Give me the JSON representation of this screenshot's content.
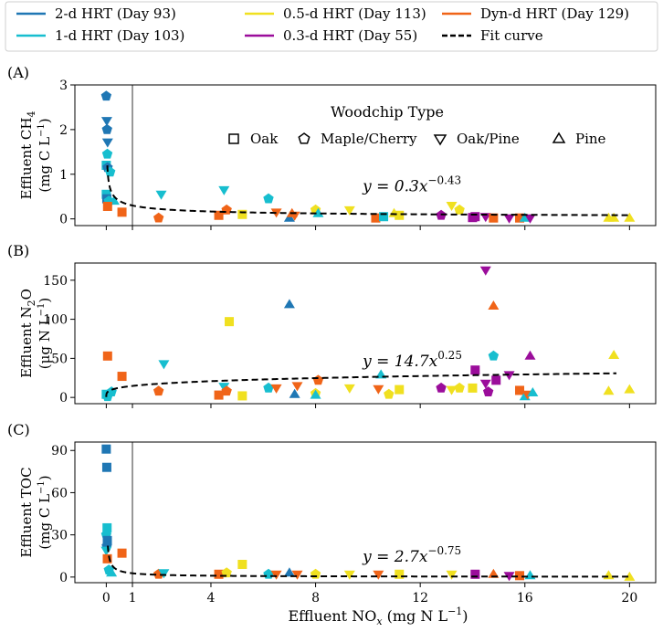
{
  "colors": {
    "hrt2": "#1f77b4",
    "hrt1": "#17becf",
    "hrt05": "#f0e020",
    "hrt03": "#9b0d9b",
    "dyn": "#f06418",
    "fit": "#000000"
  },
  "legend": {
    "items": [
      {
        "label": "2-d HRT (Day 93)",
        "color": "#1f77b4",
        "style": "solid"
      },
      {
        "label": "1-d HRT (Day 103)",
        "color": "#17becf",
        "style": "solid"
      },
      {
        "label": "0.5-d HRT (Day 113)",
        "color": "#f0e020",
        "style": "solid"
      },
      {
        "label": "0.3-d HRT (Day 55)",
        "color": "#9b0d9b",
        "style": "solid"
      },
      {
        "label": "Dyn-d HRT (Day 129)",
        "color": "#f06418",
        "style": "solid"
      },
      {
        "label": "Fit curve",
        "color": "#000000",
        "style": "dashed"
      }
    ]
  },
  "woodchip_legend": {
    "title": "Woodchip Type",
    "items": [
      {
        "label": "Oak",
        "marker": "square"
      },
      {
        "label": "Maple/Cherry",
        "marker": "pentagon"
      },
      {
        "label": "Oak/Pine",
        "marker": "triangle-down"
      },
      {
        "label": "Pine",
        "marker": "triangle-up"
      }
    ]
  },
  "chart_data": [
    {
      "panel_label": "(A)",
      "type": "scatter",
      "ylabel_line1": "Effluent CH",
      "ylabel_sub": "4",
      "ylabel_line2": "(mg C L",
      "ylabel_sup": "−1",
      "ylabel_close": ")",
      "ylim": [
        -0.15,
        3.0
      ],
      "yticks": [
        "0",
        "1",
        "2",
        "3"
      ],
      "ytick_values": [
        0,
        1,
        2,
        3
      ],
      "fit": {
        "a": 0.3,
        "b": -0.43,
        "xmin": 0.04,
        "xmax": 20,
        "label_main": "y = 0.3x",
        "label_exp": "−0.43",
        "label_x": 9.8,
        "label_y": 0.62
      },
      "reference_line_x": 1,
      "points": [
        {
          "x": 0.0,
          "y": 2.75,
          "g": "hrt2",
          "m": "pentagon"
        },
        {
          "x": 0.02,
          "y": 2.2,
          "g": "hrt2",
          "m": "triangle-down"
        },
        {
          "x": 0.03,
          "y": 2.0,
          "g": "hrt2",
          "m": "pentagon"
        },
        {
          "x": 0.05,
          "y": 1.72,
          "g": "hrt2",
          "m": "triangle-down"
        },
        {
          "x": 0.04,
          "y": 1.45,
          "g": "hrt1",
          "m": "pentagon"
        },
        {
          "x": 0.0,
          "y": 1.2,
          "g": "hrt1",
          "m": "square"
        },
        {
          "x": 0.05,
          "y": 1.15,
          "g": "hrt2",
          "m": "pentagon"
        },
        {
          "x": 0.15,
          "y": 1.05,
          "g": "hrt1",
          "m": "pentagon"
        },
        {
          "x": 0.0,
          "y": 0.55,
          "g": "hrt1",
          "m": "square"
        },
        {
          "x": 0.02,
          "y": 0.45,
          "g": "hrt2",
          "m": "square"
        },
        {
          "x": 0.1,
          "y": 0.4,
          "g": "hrt1",
          "m": "pentagon"
        },
        {
          "x": 0.3,
          "y": 0.4,
          "g": "hrt1",
          "m": "triangle-up"
        },
        {
          "x": 0.05,
          "y": 0.28,
          "g": "dyn",
          "m": "square"
        },
        {
          "x": 0.6,
          "y": 0.15,
          "g": "dyn",
          "m": "square"
        },
        {
          "x": 2.0,
          "y": 0.02,
          "g": "dyn",
          "m": "pentagon"
        },
        {
          "x": 2.1,
          "y": 0.55,
          "g": "hrt1",
          "m": "triangle-down"
        },
        {
          "x": 4.3,
          "y": 0.08,
          "g": "dyn",
          "m": "square"
        },
        {
          "x": 4.5,
          "y": 0.65,
          "g": "hrt1",
          "m": "triangle-down"
        },
        {
          "x": 4.6,
          "y": 0.2,
          "g": "dyn",
          "m": "pentagon"
        },
        {
          "x": 5.2,
          "y": 0.1,
          "g": "hrt05",
          "m": "square"
        },
        {
          "x": 6.2,
          "y": 0.45,
          "g": "hrt1",
          "m": "pentagon"
        },
        {
          "x": 6.5,
          "y": 0.15,
          "g": "dyn",
          "m": "triangle-down"
        },
        {
          "x": 7.0,
          "y": 0.02,
          "g": "hrt2",
          "m": "triangle-up"
        },
        {
          "x": 7.2,
          "y": 0.08,
          "g": "dyn",
          "m": "triangle-down"
        },
        {
          "x": 7.1,
          "y": 0.12,
          "g": "dyn",
          "m": "triangle-up"
        },
        {
          "x": 8.0,
          "y": 0.2,
          "g": "hrt05",
          "m": "pentagon"
        },
        {
          "x": 8.1,
          "y": 0.12,
          "g": "hrt1",
          "m": "triangle-up"
        },
        {
          "x": 9.3,
          "y": 0.2,
          "g": "hrt05",
          "m": "triangle-down"
        },
        {
          "x": 10.3,
          "y": 0.02,
          "g": "dyn",
          "m": "square"
        },
        {
          "x": 10.6,
          "y": 0.05,
          "g": "hrt1",
          "m": "square"
        },
        {
          "x": 11.0,
          "y": 0.12,
          "g": "hrt05",
          "m": "triangle-up"
        },
        {
          "x": 11.2,
          "y": 0.08,
          "g": "hrt05",
          "m": "square"
        },
        {
          "x": 12.8,
          "y": 0.08,
          "g": "hrt03",
          "m": "pentagon"
        },
        {
          "x": 13.2,
          "y": 0.3,
          "g": "hrt05",
          "m": "triangle-down"
        },
        {
          "x": 13.5,
          "y": 0.2,
          "g": "hrt05",
          "m": "pentagon"
        },
        {
          "x": 14.0,
          "y": 0.03,
          "g": "hrt03",
          "m": "square"
        },
        {
          "x": 14.1,
          "y": 0.05,
          "g": "hrt03",
          "m": "square"
        },
        {
          "x": 14.5,
          "y": 0.05,
          "g": "hrt03",
          "m": "triangle-down"
        },
        {
          "x": 14.8,
          "y": 0.02,
          "g": "dyn",
          "m": "square"
        },
        {
          "x": 15.4,
          "y": 0.02,
          "g": "hrt03",
          "m": "triangle-down"
        },
        {
          "x": 15.8,
          "y": 0.02,
          "g": "dyn",
          "m": "square"
        },
        {
          "x": 16.0,
          "y": 0.02,
          "g": "hrt1",
          "m": "triangle-up"
        },
        {
          "x": 16.2,
          "y": 0.02,
          "g": "hrt03",
          "m": "triangle-down"
        },
        {
          "x": 19.2,
          "y": 0.02,
          "g": "hrt05",
          "m": "triangle-up"
        },
        {
          "x": 19.4,
          "y": 0.02,
          "g": "hrt05",
          "m": "triangle-up"
        },
        {
          "x": 20.0,
          "y": 0.02,
          "g": "hrt05",
          "m": "triangle-up"
        }
      ]
    },
    {
      "panel_label": "(B)",
      "type": "scatter",
      "ylabel_line1": "Effluent N",
      "ylabel_sub": "2",
      "ylabel_tail": "O",
      "ylabel_line2": "(μg N L",
      "ylabel_sup": "−1",
      "ylabel_close": ")",
      "ylim": [
        -8,
        172
      ],
      "yticks": [
        "0",
        "50",
        "100",
        "150"
      ],
      "ytick_values": [
        0,
        50,
        100,
        150
      ],
      "fit": {
        "a": 14.7,
        "b": 0.25,
        "xmin": 0.0,
        "xmax": 19.5,
        "label_main": "y = 14.7x",
        "label_exp": "0.25",
        "label_x": 9.8,
        "label_y": 40
      },
      "reference_line_x": null,
      "points": [
        {
          "x": 0.05,
          "y": 53,
          "g": "dyn",
          "m": "square"
        },
        {
          "x": 0.0,
          "y": 4,
          "g": "hrt1",
          "m": "square"
        },
        {
          "x": 0.05,
          "y": 1,
          "g": "hrt1",
          "m": "pentagon"
        },
        {
          "x": 0.2,
          "y": 7,
          "g": "hrt1",
          "m": "pentagon"
        },
        {
          "x": 0.6,
          "y": 27,
          "g": "dyn",
          "m": "square"
        },
        {
          "x": 2.0,
          "y": 8,
          "g": "dyn",
          "m": "pentagon"
        },
        {
          "x": 2.2,
          "y": 43,
          "g": "hrt1",
          "m": "triangle-down"
        },
        {
          "x": 4.3,
          "y": 3,
          "g": "dyn",
          "m": "square"
        },
        {
          "x": 4.5,
          "y": 14,
          "g": "hrt1",
          "m": "triangle-down"
        },
        {
          "x": 4.6,
          "y": 8,
          "g": "dyn",
          "m": "pentagon"
        },
        {
          "x": 4.7,
          "y": 97,
          "g": "hrt05",
          "m": "square"
        },
        {
          "x": 5.2,
          "y": 2,
          "g": "hrt05",
          "m": "square"
        },
        {
          "x": 6.2,
          "y": 12,
          "g": "hrt1",
          "m": "pentagon"
        },
        {
          "x": 6.5,
          "y": 12,
          "g": "dyn",
          "m": "triangle-down"
        },
        {
          "x": 7.0,
          "y": 119,
          "g": "hrt2",
          "m": "triangle-up"
        },
        {
          "x": 7.2,
          "y": 4,
          "g": "hrt2",
          "m": "triangle-up"
        },
        {
          "x": 7.3,
          "y": 15,
          "g": "dyn",
          "m": "triangle-down"
        },
        {
          "x": 8.0,
          "y": 5,
          "g": "hrt05",
          "m": "pentagon"
        },
        {
          "x": 8.1,
          "y": 22,
          "g": "dyn",
          "m": "pentagon"
        },
        {
          "x": 8.0,
          "y": 3,
          "g": "hrt1",
          "m": "triangle-up"
        },
        {
          "x": 9.3,
          "y": 12,
          "g": "hrt05",
          "m": "triangle-down"
        },
        {
          "x": 10.4,
          "y": 11,
          "g": "dyn",
          "m": "triangle-down"
        },
        {
          "x": 10.5,
          "y": 29,
          "g": "hrt1",
          "m": "triangle-up"
        },
        {
          "x": 10.8,
          "y": 4,
          "g": "hrt05",
          "m": "pentagon"
        },
        {
          "x": 11.2,
          "y": 10,
          "g": "hrt05",
          "m": "square"
        },
        {
          "x": 12.8,
          "y": 12,
          "g": "hrt03",
          "m": "pentagon"
        },
        {
          "x": 13.2,
          "y": 10,
          "g": "hrt05",
          "m": "triangle-down"
        },
        {
          "x": 13.5,
          "y": 12,
          "g": "hrt05",
          "m": "pentagon"
        },
        {
          "x": 14.0,
          "y": 12,
          "g": "hrt05",
          "m": "square"
        },
        {
          "x": 14.1,
          "y": 35,
          "g": "hrt03",
          "m": "square"
        },
        {
          "x": 14.5,
          "y": 163,
          "g": "hrt03",
          "m": "triangle-down"
        },
        {
          "x": 14.5,
          "y": 18,
          "g": "hrt03",
          "m": "triangle-down"
        },
        {
          "x": 14.6,
          "y": 7,
          "g": "hrt03",
          "m": "pentagon"
        },
        {
          "x": 14.8,
          "y": 117,
          "g": "dyn",
          "m": "triangle-up"
        },
        {
          "x": 14.8,
          "y": 53,
          "g": "hrt1",
          "m": "pentagon"
        },
        {
          "x": 14.9,
          "y": 22,
          "g": "hrt03",
          "m": "square"
        },
        {
          "x": 15.4,
          "y": 29,
          "g": "hrt03",
          "m": "triangle-down"
        },
        {
          "x": 15.8,
          "y": 9,
          "g": "dyn",
          "m": "square"
        },
        {
          "x": 16.0,
          "y": 1,
          "g": "hrt1",
          "m": "triangle-up"
        },
        {
          "x": 16.2,
          "y": 53,
          "g": "hrt03",
          "m": "triangle-up"
        },
        {
          "x": 16.1,
          "y": 4,
          "g": "dyn",
          "m": "triangle-down"
        },
        {
          "x": 16.3,
          "y": 6,
          "g": "hrt1",
          "m": "triangle-up"
        },
        {
          "x": 19.2,
          "y": 8,
          "g": "hrt05",
          "m": "triangle-up"
        },
        {
          "x": 19.4,
          "y": 54,
          "g": "hrt05",
          "m": "triangle-up"
        },
        {
          "x": 20.0,
          "y": 10,
          "g": "hrt05",
          "m": "triangle-up"
        }
      ]
    },
    {
      "panel_label": "(C)",
      "type": "scatter",
      "ylabel_line1": "Effluent TOC",
      "ylabel_line2": "(mg C L",
      "ylabel_sup": "−1",
      "ylabel_close": ")",
      "ylim": [
        -4,
        96
      ],
      "yticks": [
        "0",
        "30",
        "60",
        "90"
      ],
      "ytick_values": [
        0,
        30,
        60,
        90
      ],
      "fit": {
        "a": 2.7,
        "b": -0.75,
        "xmin": 0.06,
        "xmax": 20,
        "label_main": "y = 2.7x",
        "label_exp": "−0.75",
        "label_x": 9.8,
        "label_y": 11
      },
      "reference_line_x": 1,
      "xlabel_main": "Effluent NO",
      "xlabel_sub": "x",
      "xlabel_tail": " (mg N L",
      "xlabel_sup": "−1",
      "xlabel_close": ")",
      "points": [
        {
          "x": 0.0,
          "y": 91,
          "g": "hrt2",
          "m": "square"
        },
        {
          "x": 0.02,
          "y": 78,
          "g": "hrt2",
          "m": "square"
        },
        {
          "x": 0.03,
          "y": 35,
          "g": "hrt1",
          "m": "square"
        },
        {
          "x": 0.0,
          "y": 30,
          "g": "hrt1",
          "m": "pentagon"
        },
        {
          "x": 0.04,
          "y": 26,
          "g": "hrt2",
          "m": "square"
        },
        {
          "x": 0.02,
          "y": 22,
          "g": "hrt2",
          "m": "pentagon"
        },
        {
          "x": 0.0,
          "y": 19,
          "g": "hrt1",
          "m": "triangle-down"
        },
        {
          "x": 0.04,
          "y": 13,
          "g": "dyn",
          "m": "square"
        },
        {
          "x": 0.1,
          "y": 5,
          "g": "hrt1",
          "m": "pentagon"
        },
        {
          "x": 0.2,
          "y": 3,
          "g": "hrt1",
          "m": "triangle-up"
        },
        {
          "x": 0.6,
          "y": 17,
          "g": "dyn",
          "m": "square"
        },
        {
          "x": 2.0,
          "y": 2,
          "g": "dyn",
          "m": "pentagon"
        },
        {
          "x": 2.2,
          "y": 3,
          "g": "hrt1",
          "m": "triangle-down"
        },
        {
          "x": 4.3,
          "y": 2,
          "g": "dyn",
          "m": "square"
        },
        {
          "x": 4.6,
          "y": 3,
          "g": "hrt05",
          "m": "pentagon"
        },
        {
          "x": 5.2,
          "y": 9,
          "g": "hrt05",
          "m": "square"
        },
        {
          "x": 6.2,
          "y": 2,
          "g": "hrt1",
          "m": "pentagon"
        },
        {
          "x": 6.5,
          "y": 2,
          "g": "dyn",
          "m": "triangle-down"
        },
        {
          "x": 7.0,
          "y": 3,
          "g": "hrt2",
          "m": "triangle-up"
        },
        {
          "x": 7.3,
          "y": 2,
          "g": "dyn",
          "m": "triangle-down"
        },
        {
          "x": 8.0,
          "y": 2,
          "g": "hrt05",
          "m": "pentagon"
        },
        {
          "x": 9.3,
          "y": 2,
          "g": "hrt05",
          "m": "triangle-down"
        },
        {
          "x": 10.4,
          "y": 2,
          "g": "dyn",
          "m": "triangle-down"
        },
        {
          "x": 11.2,
          "y": 2,
          "g": "hrt05",
          "m": "square"
        },
        {
          "x": 13.2,
          "y": 2,
          "g": "hrt05",
          "m": "triangle-down"
        },
        {
          "x": 14.1,
          "y": 2,
          "g": "hrt03",
          "m": "square"
        },
        {
          "x": 14.8,
          "y": 2,
          "g": "dyn",
          "m": "triangle-up"
        },
        {
          "x": 15.4,
          "y": 1,
          "g": "hrt03",
          "m": "triangle-down"
        },
        {
          "x": 15.8,
          "y": 1,
          "g": "dyn",
          "m": "square"
        },
        {
          "x": 16.2,
          "y": 1,
          "g": "hrt1",
          "m": "triangle-up"
        },
        {
          "x": 19.2,
          "y": 1,
          "g": "hrt05",
          "m": "triangle-up"
        },
        {
          "x": 20.0,
          "y": 0,
          "g": "hrt05",
          "m": "triangle-up"
        }
      ]
    }
  ],
  "x_axis": {
    "ticks": [
      "0",
      "1",
      "4",
      "8",
      "12",
      "16",
      "20"
    ],
    "tick_values": [
      0,
      1,
      4,
      8,
      12,
      16,
      20
    ],
    "xlim": [
      -1.2,
      21.0
    ]
  }
}
